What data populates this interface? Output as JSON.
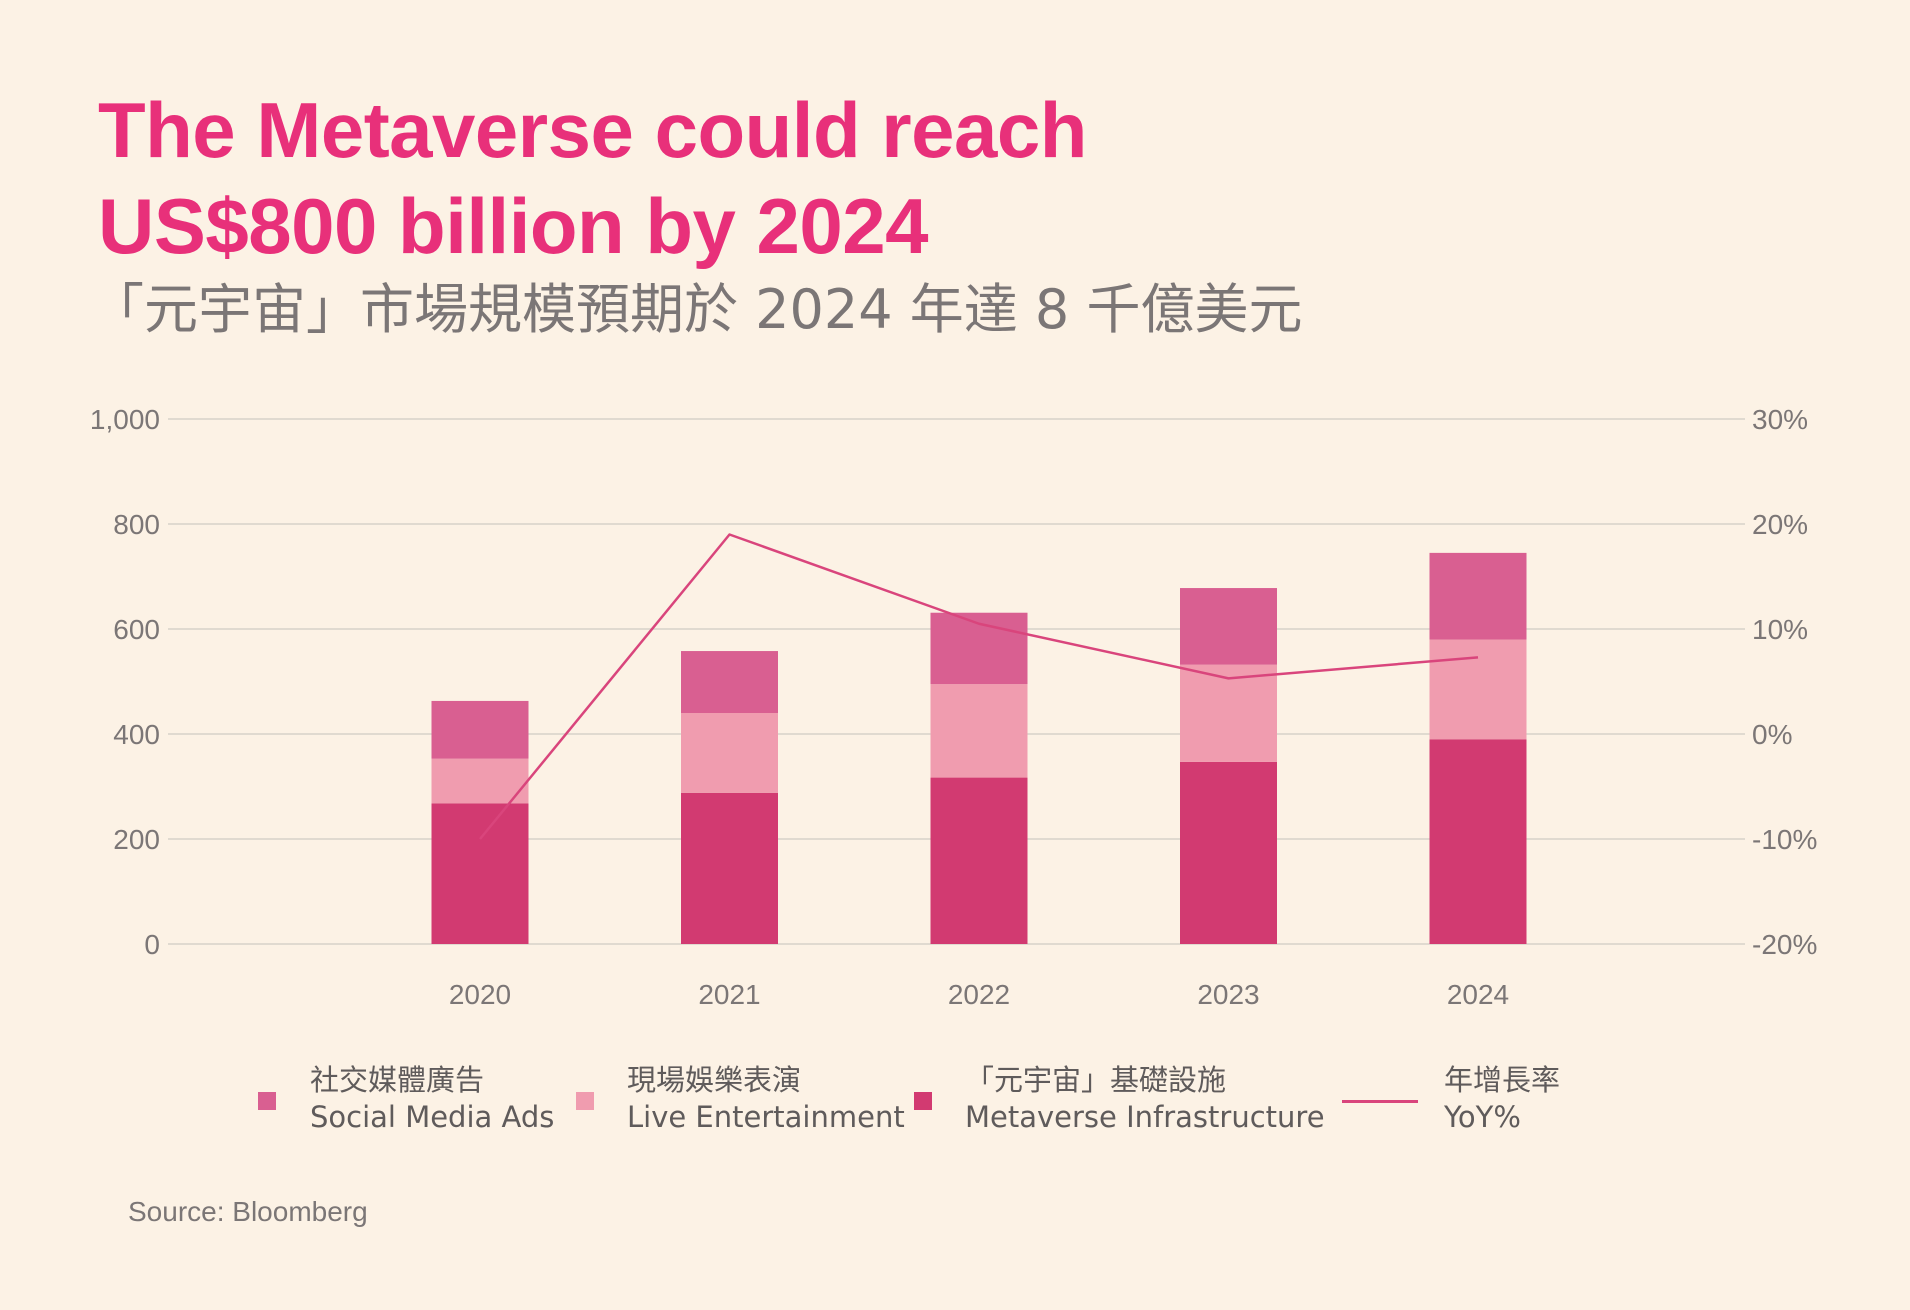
{
  "title_lines": [
    "The Metaverse could reach",
    "US$800 billion by 2024"
  ],
  "subtitle": "「元宇宙」市場規模預期於 2024 年達 8 千億美元",
  "source": "Source: Bloomberg",
  "colors": {
    "background": "#fcf2e5",
    "title": "#e8307a",
    "social_media_ads": "#d95f91",
    "live_entertainment": "#f09caf",
    "metaverse_infrastructure": "#d23a71",
    "yoy_line": "#d9457c",
    "grid": "#d6d1ca",
    "axis_text": "#7b7676"
  },
  "legend": [
    {
      "zh": "社交媒體廣告",
      "en": "Social Media Ads",
      "marker": "square",
      "color_key": "social_media_ads"
    },
    {
      "zh": "現場娛樂表演",
      "en": "Live Entertainment",
      "marker": "square",
      "color_key": "live_entertainment"
    },
    {
      "zh": "「元宇宙」基礎設施",
      "en": "Metaverse Infrastructure",
      "marker": "square",
      "color_key": "metaverse_infrastructure"
    },
    {
      "zh": "年增長率",
      "en": "YoY%",
      "marker": "line",
      "color_key": "yoy_line"
    }
  ],
  "chart_data": {
    "type": "bar",
    "stacked": true,
    "categories": [
      "2020",
      "2021",
      "2022",
      "2023",
      "2024"
    ],
    "series": [
      {
        "name": "Metaverse Infrastructure",
        "type": "bar",
        "axis": "left",
        "values": [
          268,
          288,
          317,
          347,
          390
        ]
      },
      {
        "name": "Live Entertainment",
        "type": "bar",
        "axis": "left",
        "values": [
          85,
          152,
          178,
          185,
          190
        ]
      },
      {
        "name": "Social Media Ads",
        "type": "bar",
        "axis": "left",
        "values": [
          110,
          118,
          136,
          146,
          165
        ]
      },
      {
        "name": "YoY%",
        "type": "line",
        "axis": "right",
        "values": [
          -10,
          19,
          10.5,
          5.3,
          7.3
        ]
      }
    ],
    "ylim": [
      0,
      1000
    ],
    "yticks": [
      "0",
      "200",
      "400",
      "600",
      "800",
      "1,000"
    ],
    "ytick_values": [
      0,
      200,
      400,
      600,
      800,
      1000
    ],
    "y2lim": [
      -20,
      30
    ],
    "y2ticks": [
      "-20%",
      "-10%",
      "0%",
      "10%",
      "20%",
      "30%"
    ],
    "y2tick_values": [
      -20,
      -10,
      0,
      10,
      20,
      30
    ],
    "grid": true,
    "legend_position": "bottom"
  }
}
